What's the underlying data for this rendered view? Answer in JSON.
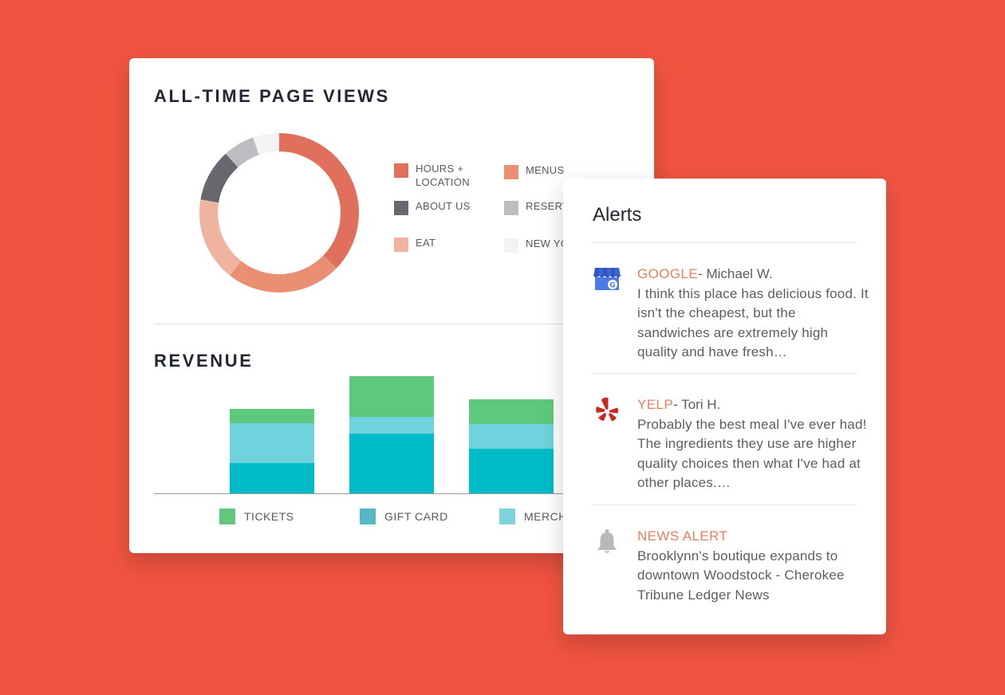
{
  "colors": {
    "background": "#f05441",
    "hours_location": "#e0705c",
    "menus": "#ea8f73",
    "about_us": "#66686d",
    "reservations": "#bbbdc1",
    "eat": "#f0b3a0",
    "new_york": "#f3f3f3",
    "tickets": "#5ec97c",
    "gift_card": "#00bcc7",
    "merch": "#6ed3dc",
    "source_accent": "#e5805f"
  },
  "page_views": {
    "title": "ALL-TIME PAGE VIEWS",
    "legend": [
      {
        "key": "hours_location",
        "label": "HOURS +\nLOCATION",
        "color": "#e0705c"
      },
      {
        "key": "menus",
        "label": "MENUS",
        "color": "#ea8f73"
      },
      {
        "key": "about_us",
        "label": "ABOUT US",
        "color": "#66686d"
      },
      {
        "key": "reservations",
        "label": "RESERV",
        "color": "#bbbdc1"
      },
      {
        "key": "eat",
        "label": "EAT",
        "color": "#f0b3a0"
      },
      {
        "key": "new_york",
        "label": "NEW YO",
        "color": "#f3f3f3"
      }
    ]
  },
  "revenue": {
    "title": "REVENUE",
    "legend": [
      {
        "key": "tickets",
        "label": "TICKETS",
        "color": "#5ec97c"
      },
      {
        "key": "gift_card",
        "label": "GIFT CARD",
        "color": "#54b8c6"
      },
      {
        "key": "merch",
        "label": "MERCH",
        "color": "#7fd4dc"
      }
    ]
  },
  "chart_data": [
    {
      "type": "pie",
      "title": "ALL-TIME PAGE VIEWS",
      "labels": [
        "HOURS + LOCATION",
        "MENUS",
        "EAT",
        "ABOUT US",
        "RESERV",
        "NEW YO"
      ],
      "values": [
        35,
        22,
        16,
        10,
        6,
        5
      ]
    },
    {
      "type": "bar",
      "stacked": true,
      "title": "REVENUE",
      "categories": [
        "",
        "",
        ""
      ],
      "series": [
        {
          "name": "GIFT CARD",
          "values": [
            38,
            75,
            56
          ]
        },
        {
          "name": "MERCH",
          "values": [
            50,
            21,
            31
          ]
        },
        {
          "name": "TICKETS",
          "values": [
            18,
            51,
            31
          ]
        }
      ],
      "ylim": [
        0,
        150
      ]
    }
  ],
  "alerts": {
    "title": "Alerts",
    "items": [
      {
        "icon": "google-business-icon",
        "source": "GOOGLE",
        "author": "- Michael W.",
        "text": "I think this place has delicious food. It isn't the cheapest, but the sandwiches are extremely high quality and have fresh…"
      },
      {
        "icon": "yelp-icon",
        "source": "YELP",
        "author": "- Tori H.",
        "text": "Probably the best meal I've ever had! The ingredients they use are higher quality choices then what I've had at other places.…"
      },
      {
        "icon": "bell-icon",
        "source": "NEWS ALERT",
        "author": "",
        "text": "Brooklynn's boutique expands to downtown Woodstock - Cherokee Tribune Ledger News"
      }
    ]
  }
}
